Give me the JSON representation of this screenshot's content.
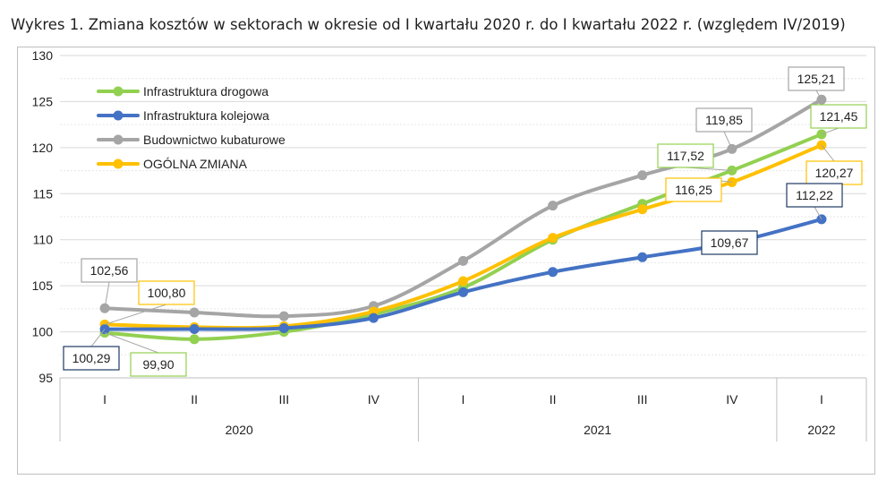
{
  "title": "Wykres 1. Zmiana kosztów w sektorach w okresie od I kwartału 2020 r. do I kwartału 2022 r. (względem IV/2019)",
  "chart_data": {
    "type": "line",
    "title": "Wykres 1. Zmiana kosztów w sektorach w okresie od I kwartału 2020 r. do I kwartału 2022 r. (względem IV/2019)",
    "categories": [
      "I",
      "II",
      "III",
      "IV",
      "I",
      "II",
      "III",
      "IV",
      "I"
    ],
    "groups": [
      {
        "label": "2020",
        "start": 0,
        "end": 3
      },
      {
        "label": "2021",
        "start": 4,
        "end": 7
      },
      {
        "label": "2022",
        "start": 8,
        "end": 8
      }
    ],
    "ylim": [
      95,
      130
    ],
    "yticks": [
      95,
      100,
      105,
      110,
      115,
      120,
      125,
      130
    ],
    "grid": true,
    "legend_position": "top-left",
    "series": [
      {
        "name": "Infrastruktura drogowa",
        "color": "#92d050",
        "values": [
          99.9,
          99.2,
          100.0,
          101.9,
          104.8,
          110.0,
          113.9,
          117.52,
          121.45
        ]
      },
      {
        "name": "Infrastruktura kolejowa",
        "color": "#4472c4",
        "values": [
          100.29,
          100.3,
          100.4,
          101.5,
          104.3,
          106.5,
          108.1,
          109.67,
          112.22
        ]
      },
      {
        "name": "Budownictwo kubaturowe",
        "color": "#a5a5a5",
        "values": [
          102.56,
          102.1,
          101.7,
          102.8,
          107.7,
          113.7,
          117.0,
          119.85,
          125.21
        ]
      },
      {
        "name": "OGÓLNA ZMIANA",
        "color": "#ffc000",
        "values": [
          100.8,
          100.5,
          100.6,
          102.2,
          105.5,
          110.2,
          113.3,
          116.25,
          120.27
        ]
      }
    ],
    "data_labels": [
      {
        "series": 2,
        "index": 0,
        "text": "102,56"
      },
      {
        "series": 3,
        "index": 0,
        "text": "100,80"
      },
      {
        "series": 1,
        "index": 0,
        "text": "100,29"
      },
      {
        "series": 0,
        "index": 0,
        "text": "99,90"
      },
      {
        "series": 0,
        "index": 7,
        "text": "117,52"
      },
      {
        "series": 2,
        "index": 7,
        "text": "119,85"
      },
      {
        "series": 3,
        "index": 7,
        "text": "116,25"
      },
      {
        "series": 1,
        "index": 7,
        "text": "109,67"
      },
      {
        "series": 2,
        "index": 8,
        "text": "125,21"
      },
      {
        "series": 0,
        "index": 8,
        "text": "121,45"
      },
      {
        "series": 3,
        "index": 8,
        "text": "120,27"
      },
      {
        "series": 1,
        "index": 8,
        "text": "112,22"
      }
    ]
  }
}
